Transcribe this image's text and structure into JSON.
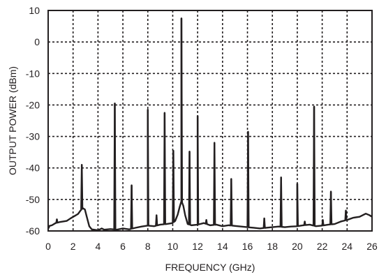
{
  "chart_data": {
    "type": "line",
    "title": "",
    "xlabel": "FREQUENCY (GHz)",
    "ylabel": "OUTPUT POWER (dBm)",
    "xlim": [
      0,
      26
    ],
    "ylim": [
      -60,
      10
    ],
    "xticks": [
      "0",
      "2",
      "4",
      "6",
      "8",
      "10",
      "12",
      "14",
      "16",
      "18",
      "20",
      "22",
      "24",
      "26"
    ],
    "yticks": [
      "10",
      "0",
      "-10",
      "-20",
      "-30",
      "-40",
      "-50",
      "-60"
    ],
    "grid": true,
    "grid_style": "dashed",
    "line_color": "#231f20",
    "background": "#ffffff",
    "noise_floor": [
      [
        0,
        -58.5
      ],
      [
        0.3,
        -58.2
      ],
      [
        0.6,
        -57.5
      ],
      [
        0.9,
        -57.2
      ],
      [
        1.2,
        -57.0
      ],
      [
        1.5,
        -56.8
      ],
      [
        1.8,
        -56.0
      ],
      [
        2.1,
        -55.3
      ],
      [
        2.4,
        -54.6
      ],
      [
        2.6,
        -53.5
      ],
      [
        2.8,
        -52.8
      ],
      [
        2.95,
        -53.2
      ],
      [
        3.1,
        -55.5
      ],
      [
        3.3,
        -58.5
      ],
      [
        3.5,
        -59.5
      ],
      [
        4.0,
        -59.8
      ],
      [
        4.3,
        -59.2
      ],
      [
        4.5,
        -59.6
      ],
      [
        5.0,
        -59.4
      ],
      [
        5.5,
        -59.6
      ],
      [
        6.0,
        -59.2
      ],
      [
        6.5,
        -59.5
      ],
      [
        7.0,
        -59.0
      ],
      [
        7.5,
        -58.6
      ],
      [
        8.0,
        -58.3
      ],
      [
        8.5,
        -58.5
      ],
      [
        9.0,
        -58.0
      ],
      [
        9.5,
        -57.8
      ],
      [
        10.0,
        -57.5
      ],
      [
        10.2,
        -56.8
      ],
      [
        10.4,
        -54.8
      ],
      [
        10.55,
        -52.5
      ],
      [
        10.7,
        -50.5
      ],
      [
        10.85,
        -52.0
      ],
      [
        11.0,
        -55.0
      ],
      [
        11.2,
        -57.8
      ],
      [
        11.5,
        -58.2
      ],
      [
        12.0,
        -58.0
      ],
      [
        12.5,
        -57.5
      ],
      [
        13.0,
        -58.2
      ],
      [
        13.5,
        -58.0
      ],
      [
        14.0,
        -58.5
      ],
      [
        14.5,
        -58.2
      ],
      [
        15.0,
        -58.4
      ],
      [
        15.5,
        -58.6
      ],
      [
        16.0,
        -58.8
      ],
      [
        16.5,
        -59.0
      ],
      [
        17.0,
        -59.2
      ],
      [
        17.5,
        -59.0
      ],
      [
        18.0,
        -58.8
      ],
      [
        18.5,
        -58.6
      ],
      [
        19.0,
        -58.8
      ],
      [
        19.5,
        -58.6
      ],
      [
        20.0,
        -58.5
      ],
      [
        20.5,
        -58.2
      ],
      [
        21.0,
        -58.0
      ],
      [
        21.5,
        -58.5
      ],
      [
        22.0,
        -58.3
      ],
      [
        22.5,
        -58.0
      ],
      [
        23.0,
        -57.8
      ],
      [
        23.5,
        -57.0
      ],
      [
        24.0,
        -56.5
      ],
      [
        24.5,
        -55.8
      ],
      [
        25.0,
        -55.5
      ],
      [
        25.5,
        -54.5
      ],
      [
        25.8,
        -55.0
      ],
      [
        26.0,
        -55.5
      ]
    ],
    "spurs": [
      {
        "x": 0.05,
        "y": -59.0
      },
      {
        "x": 0.7,
        "y": -56.3
      },
      {
        "x": 2.7,
        "y": -39.0
      },
      {
        "x": 5.35,
        "y": -19.5
      },
      {
        "x": 6.7,
        "y": -45.5
      },
      {
        "x": 8.0,
        "y": -21.5
      },
      {
        "x": 8.7,
        "y": -55.0
      },
      {
        "x": 9.35,
        "y": -22.5
      },
      {
        "x": 10.05,
        "y": -34.5
      },
      {
        "x": 10.7,
        "y": 7.5
      },
      {
        "x": 11.35,
        "y": -34.8
      },
      {
        "x": 12.0,
        "y": -23.5
      },
      {
        "x": 12.7,
        "y": -56.5
      },
      {
        "x": 13.35,
        "y": -32.0
      },
      {
        "x": 14.7,
        "y": -43.5
      },
      {
        "x": 16.05,
        "y": -28.5
      },
      {
        "x": 17.35,
        "y": -56.0
      },
      {
        "x": 18.7,
        "y": -43.0
      },
      {
        "x": 20.0,
        "y": -45.0
      },
      {
        "x": 20.6,
        "y": -57.0
      },
      {
        "x": 21.35,
        "y": -20.5
      },
      {
        "x": 22.05,
        "y": -56.5
      },
      {
        "x": 22.7,
        "y": -47.5
      },
      {
        "x": 23.9,
        "y": -53.5
      }
    ]
  }
}
